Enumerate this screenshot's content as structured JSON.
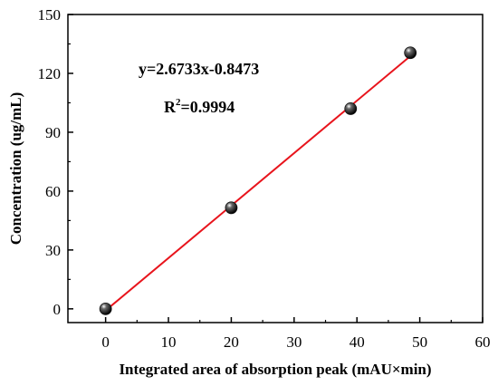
{
  "chart_data": {
    "type": "scatter",
    "title": "",
    "xlabel": "Integrated area of absorption peak (mAU×min)",
    "ylabel": "Concentration (ug/mL)",
    "xlim": [
      -6,
      60
    ],
    "ylim": [
      -7,
      150
    ],
    "xticks": [
      0,
      10,
      20,
      30,
      40,
      50,
      60
    ],
    "yticks": [
      0,
      30,
      60,
      90,
      120,
      150
    ],
    "grid": false,
    "legend": "none",
    "series": [
      {
        "x": [
          0,
          20,
          39,
          48.5
        ],
        "y": [
          0,
          51.5,
          102,
          130.5
        ],
        "marker_color": "#111111"
      }
    ],
    "fit_line": {
      "slope": 2.6733,
      "intercept": -0.8473,
      "x_range": [
        0,
        49
      ],
      "color": "#e8141c"
    },
    "annotations": {
      "equation": "y=2.6733x-0.8473",
      "r2_prefix": "R",
      "r2_sup": "2",
      "r2_value": "=0.9994"
    }
  }
}
